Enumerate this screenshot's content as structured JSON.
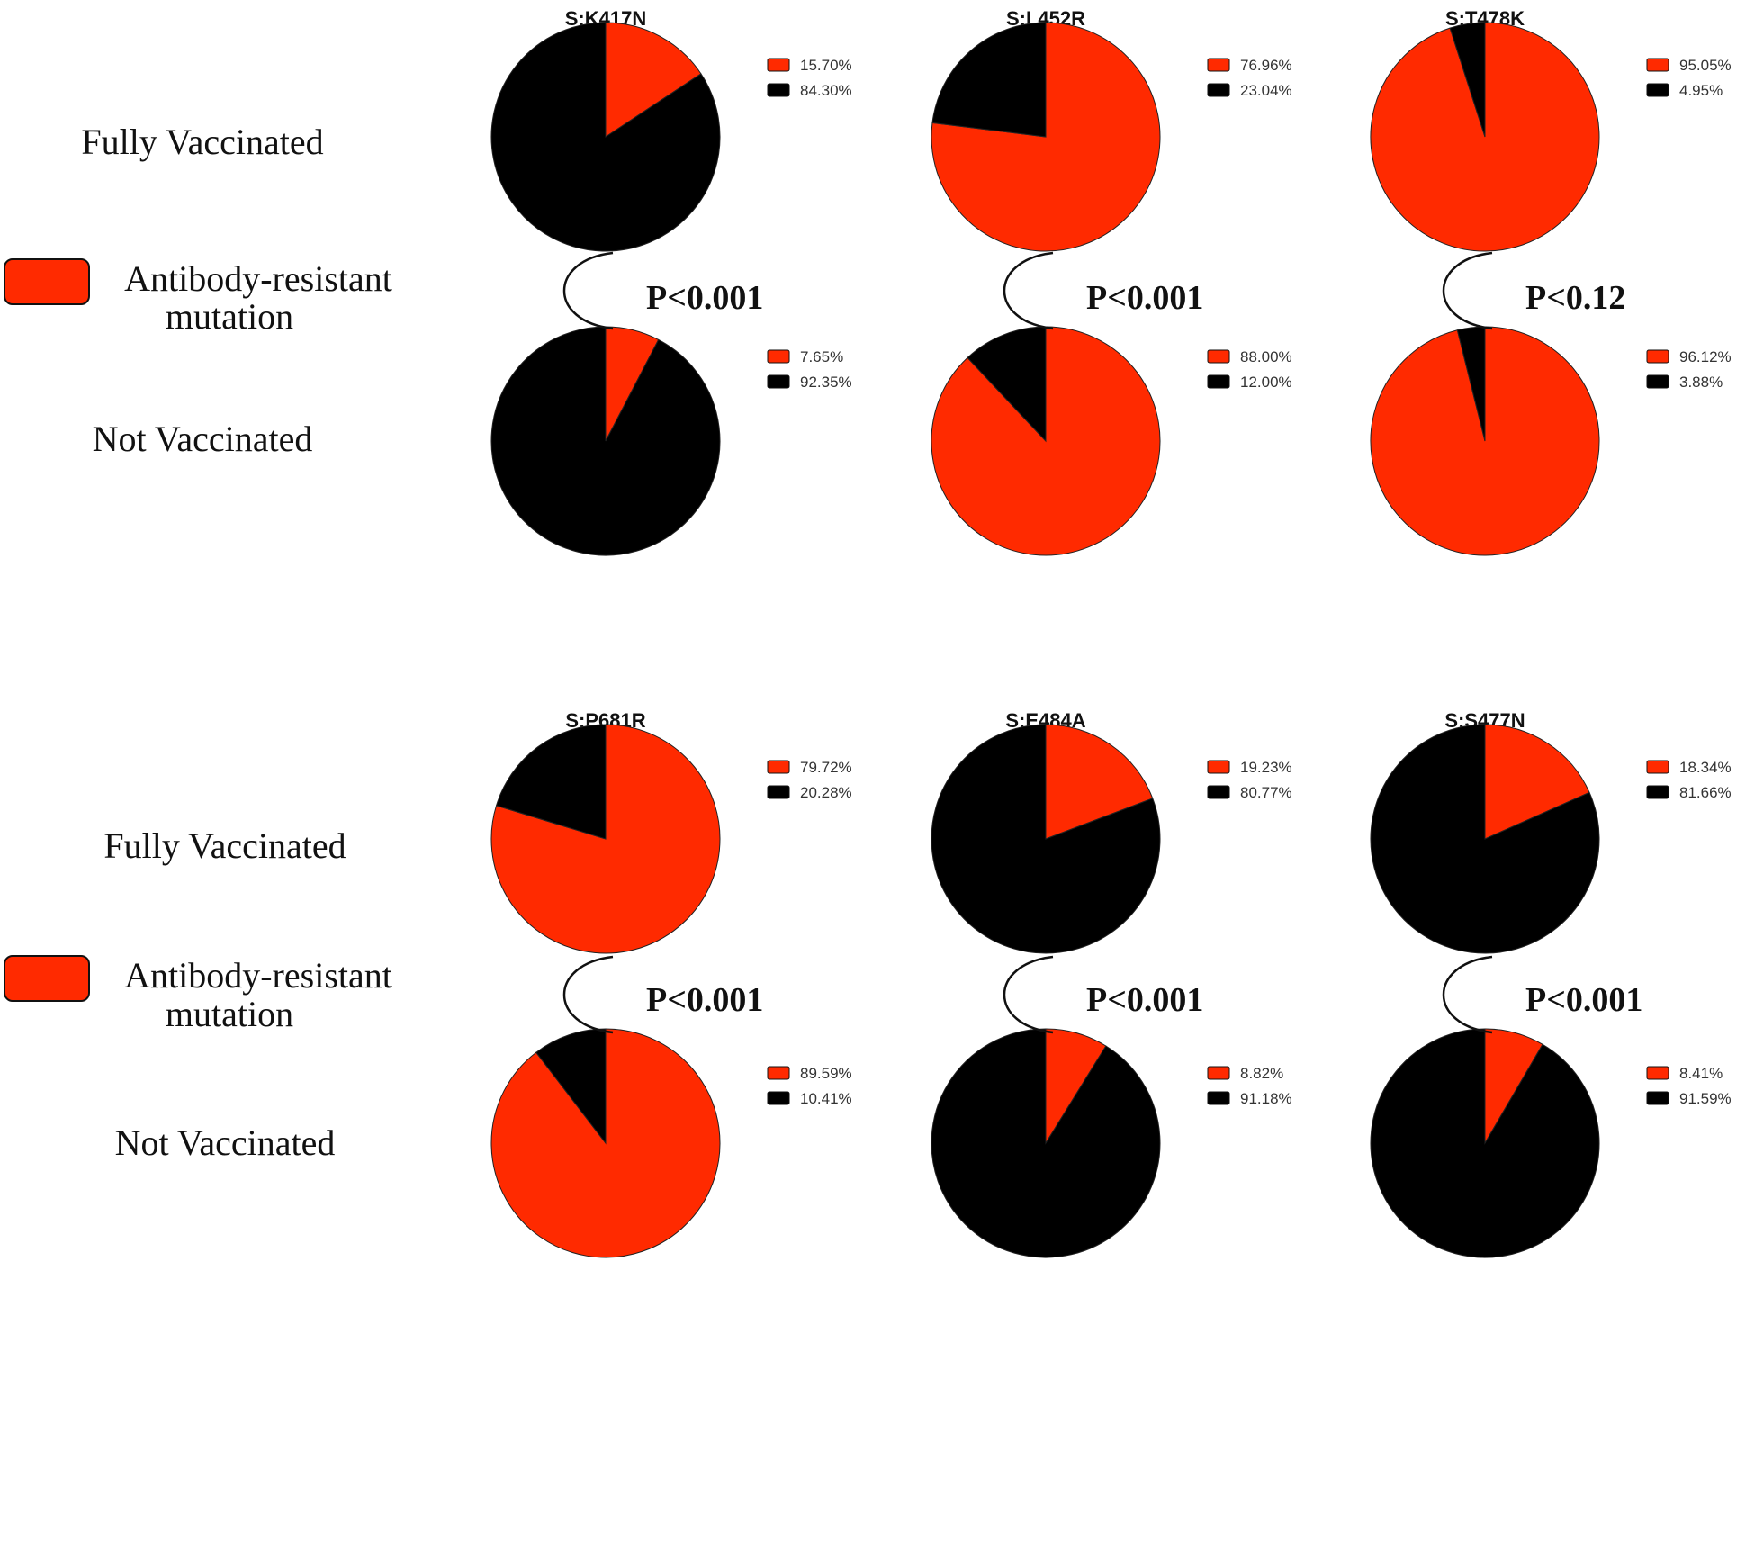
{
  "chart_data": [
    {
      "type": "pie",
      "title": "S:K417N",
      "series": [
        {
          "name": "Fully Vaccinated",
          "labels": [
            "15.70%",
            "84.30%"
          ],
          "values": [
            15.7,
            84.3
          ]
        },
        {
          "name": "Not Vaccinated",
          "labels": [
            "7.65%",
            "92.35%"
          ],
          "values": [
            7.65,
            92.35
          ]
        }
      ],
      "p_value": "P<0.001",
      "colors": [
        "#ff2a00",
        "#000000"
      ]
    },
    {
      "type": "pie",
      "title": "S:L452R",
      "series": [
        {
          "name": "Fully Vaccinated",
          "labels": [
            "76.96%",
            "23.04%"
          ],
          "values": [
            76.96,
            23.04
          ]
        },
        {
          "name": "Not Vaccinated",
          "labels": [
            "88.00%",
            "12.00%"
          ],
          "values": [
            88.0,
            12.0
          ]
        }
      ],
      "p_value": "P<0.001",
      "colors": [
        "#ff2a00",
        "#000000"
      ]
    },
    {
      "type": "pie",
      "title": "S:T478K",
      "series": [
        {
          "name": "Fully Vaccinated",
          "labels": [
            "95.05%",
            "4.95%"
          ],
          "values": [
            95.05,
            4.95
          ]
        },
        {
          "name": "Not Vaccinated",
          "labels": [
            "96.12%",
            "3.88%"
          ],
          "values": [
            96.12,
            3.88
          ]
        }
      ],
      "p_value": "P<0.12",
      "colors": [
        "#ff2a00",
        "#000000"
      ]
    },
    {
      "type": "pie",
      "title": "S:P681R",
      "series": [
        {
          "name": "Fully Vaccinated",
          "labels": [
            "79.72%",
            "20.28%"
          ],
          "values": [
            79.72,
            20.28
          ]
        },
        {
          "name": "Not Vaccinated",
          "labels": [
            "89.59%",
            "10.41%"
          ],
          "values": [
            89.59,
            10.41
          ]
        }
      ],
      "p_value": "P<0.001",
      "colors": [
        "#ff2a00",
        "#000000"
      ]
    },
    {
      "type": "pie",
      "title": "S:E484A",
      "series": [
        {
          "name": "Fully Vaccinated",
          "labels": [
            "19.23%",
            "80.77%"
          ],
          "values": [
            19.23,
            80.77
          ]
        },
        {
          "name": "Not Vaccinated",
          "labels": [
            "8.82%",
            "91.18%"
          ],
          "values": [
            8.82,
            91.18
          ]
        }
      ],
      "p_value": "P<0.001",
      "colors": [
        "#ff2a00",
        "#000000"
      ]
    },
    {
      "type": "pie",
      "title": "S:S477N",
      "series": [
        {
          "name": "Fully Vaccinated",
          "labels": [
            "18.34%",
            "81.66%"
          ],
          "values": [
            18.34,
            81.66
          ]
        },
        {
          "name": "Not Vaccinated",
          "labels": [
            "8.41%",
            "91.59%"
          ],
          "values": [
            8.41,
            91.59
          ]
        }
      ],
      "p_value": "P<0.001",
      "colors": [
        "#ff2a00",
        "#000000"
      ]
    }
  ],
  "row_labels": {
    "vaccinated": "Fully Vaccinated",
    "not_vaccinated": "Not Vaccinated"
  },
  "key": {
    "line1": "Antibody-resistant",
    "line2": "mutation",
    "color": "#ff2a00"
  },
  "colors": {
    "resistant": "#ff2a00",
    "other": "#000000"
  }
}
